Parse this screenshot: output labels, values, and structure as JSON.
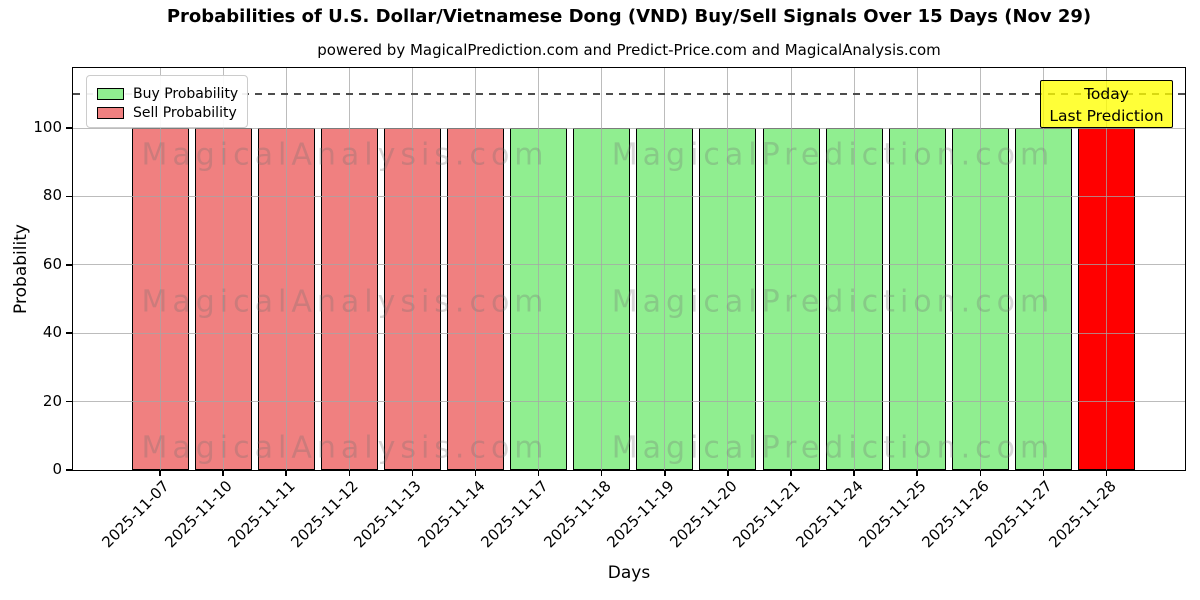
{
  "title": "Probabilities of U.S. Dollar/Vietnamese Dong (VND) Buy/Sell Signals Over 15 Days (Nov 29)",
  "subtitle": "powered by MagicalPrediction.com and Predict-Price.com and MagicalAnalysis.com",
  "chart_data": {
    "type": "bar",
    "title": "Probabilities of U.S. Dollar/Vietnamese Dong (VND) Buy/Sell Signals Over 15 Days (Nov 29)",
    "xlabel": "Days",
    "ylabel": "Probability",
    "yticks": [
      0,
      20,
      40,
      60,
      80,
      100
    ],
    "ylim": [
      0,
      117
    ],
    "dashed_line_y": 110,
    "grid": true,
    "legend_position": "upper left",
    "series": [
      {
        "name": "Buy Probability",
        "color": "#90ee90"
      },
      {
        "name": "Sell Probability",
        "color": "#f08080"
      }
    ],
    "colors": {
      "buy": "#90ee90",
      "sell": "#f08080",
      "today": "#ff0000"
    },
    "bars": [
      {
        "date": "2025-11-07",
        "value": 100,
        "kind": "sell"
      },
      {
        "date": "2025-11-10",
        "value": 100,
        "kind": "sell"
      },
      {
        "date": "2025-11-11",
        "value": 100,
        "kind": "sell"
      },
      {
        "date": "2025-11-12",
        "value": 100,
        "kind": "sell"
      },
      {
        "date": "2025-11-13",
        "value": 100,
        "kind": "sell"
      },
      {
        "date": "2025-11-14",
        "value": 100,
        "kind": "sell"
      },
      {
        "date": "2025-11-17",
        "value": 100,
        "kind": "buy"
      },
      {
        "date": "2025-11-18",
        "value": 100,
        "kind": "buy"
      },
      {
        "date": "2025-11-19",
        "value": 100,
        "kind": "buy"
      },
      {
        "date": "2025-11-20",
        "value": 100,
        "kind": "buy"
      },
      {
        "date": "2025-11-21",
        "value": 100,
        "kind": "buy"
      },
      {
        "date": "2025-11-24",
        "value": 100,
        "kind": "buy"
      },
      {
        "date": "2025-11-25",
        "value": 100,
        "kind": "buy"
      },
      {
        "date": "2025-11-26",
        "value": 100,
        "kind": "buy"
      },
      {
        "date": "2025-11-27",
        "value": 100,
        "kind": "buy"
      },
      {
        "date": "2025-11-28",
        "value": 100,
        "kind": "today"
      }
    ],
    "annotation": {
      "lines": [
        "Today",
        "Last Prediction"
      ],
      "bg": "#ffff00"
    },
    "watermarks": [
      "MagicalAnalysis.com",
      "MagicalPrediction.com"
    ]
  }
}
